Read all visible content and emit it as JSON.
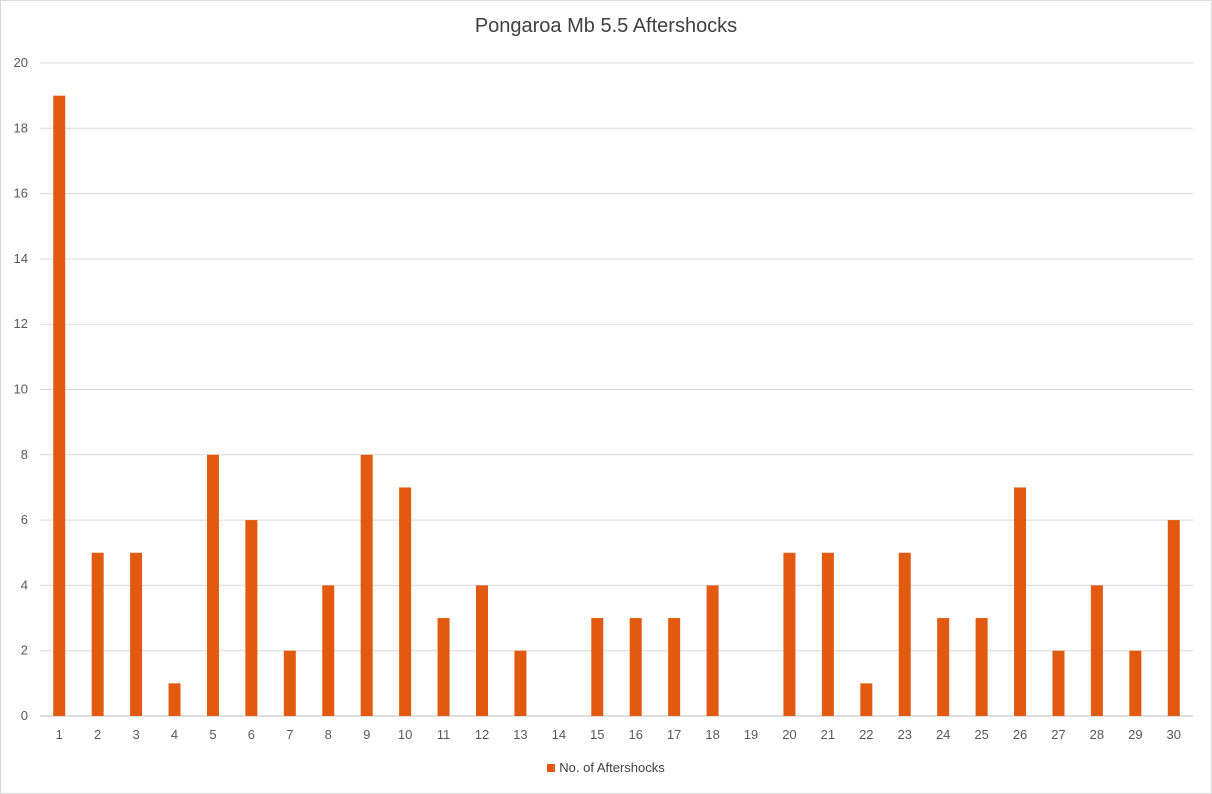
{
  "chart_data": {
    "type": "bar",
    "title": "Pongaroa Mb 5.5 Aftershocks",
    "xlabel": "",
    "ylabel": "",
    "categories": [
      "1",
      "2",
      "3",
      "4",
      "5",
      "6",
      "7",
      "8",
      "9",
      "10",
      "11",
      "12",
      "13",
      "14",
      "15",
      "16",
      "17",
      "18",
      "19",
      "20",
      "21",
      "22",
      "23",
      "24",
      "25",
      "26",
      "27",
      "28",
      "29",
      "30"
    ],
    "series": [
      {
        "name": "No. of Aftershocks",
        "values": [
          19,
          5,
          5,
          1,
          8,
          6,
          2,
          4,
          8,
          7,
          3,
          4,
          2,
          0,
          3,
          3,
          3,
          4,
          0,
          5,
          5,
          1,
          5,
          3,
          3,
          7,
          2,
          4,
          2,
          6
        ]
      }
    ],
    "ylim": [
      0,
      20
    ],
    "yticks": [
      0,
      2,
      4,
      6,
      8,
      10,
      12,
      14,
      16,
      18,
      20
    ],
    "grid": true,
    "legend": "bottom",
    "bar_color": "#e15a0f",
    "grid_color": "#d9d9d9",
    "text_color": "#595959"
  }
}
